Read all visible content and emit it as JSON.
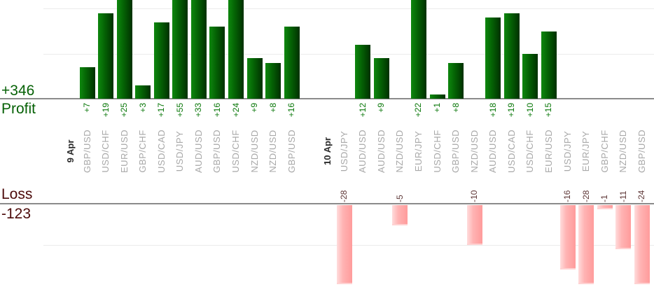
{
  "summary": {
    "profit_total": "+346",
    "profit_axis_label": "Profit",
    "loss_axis_label": "Loss",
    "loss_total": "-123"
  },
  "chart_data": {
    "type": "bar",
    "title": "",
    "description_visible_text_only": "Daily forex trades profit/loss bars per currency pair",
    "groups": [
      {
        "date": "9 Apr",
        "trades": [
          {
            "pair": "GBP/USD",
            "value": 7,
            "label": "+7"
          },
          {
            "pair": "USD/CHF",
            "value": 19,
            "label": "+19"
          },
          {
            "pair": "EUR/USD",
            "value": 25,
            "label": "+25"
          },
          {
            "pair": "GBP/CHF",
            "value": 3,
            "label": "+3"
          },
          {
            "pair": "USD/CAD",
            "value": 17,
            "label": "+17"
          },
          {
            "pair": "USD/JPY",
            "value": 55,
            "label": "+55"
          },
          {
            "pair": "AUD/USD",
            "value": 33,
            "label": "+33"
          },
          {
            "pair": "GBP/USD",
            "value": 16,
            "label": "+16"
          },
          {
            "pair": "USD/CHF",
            "value": 24,
            "label": "+24"
          },
          {
            "pair": "NZD/USD",
            "value": 9,
            "label": "+9"
          },
          {
            "pair": "NZD/USD",
            "value": 8,
            "label": "+8"
          },
          {
            "pair": "GBP/USD",
            "value": 16,
            "label": "+16"
          }
        ]
      },
      {
        "date": "10 Apr",
        "trades": [
          {
            "pair": "USD/JPY",
            "value": -28,
            "label": "-28"
          },
          {
            "pair": "AUD/USD",
            "value": 12,
            "label": "+12"
          },
          {
            "pair": "AUD/USD",
            "value": 9,
            "label": "+9"
          },
          {
            "pair": "NZD/USD",
            "value": -5,
            "label": "-5"
          },
          {
            "pair": "EUR/JPY",
            "value": 22,
            "label": "+22"
          },
          {
            "pair": "USD/CHF",
            "value": 1,
            "label": "+1"
          },
          {
            "pair": "GBP/USD",
            "value": 8,
            "label": "+8"
          },
          {
            "pair": "NZD/USD",
            "value": -10,
            "label": "-10"
          },
          {
            "pair": "AUD/USD",
            "value": 18,
            "label": "+18"
          },
          {
            "pair": "USD/CAD",
            "value": 19,
            "label": "+19"
          },
          {
            "pair": "USD/CHF",
            "value": 10,
            "label": "+10"
          },
          {
            "pair": "EUR/USD",
            "value": 15,
            "label": "+15"
          },
          {
            "pair": "USD/JPY",
            "value": -16,
            "label": "-16"
          },
          {
            "pair": "EUR/JPY",
            "value": -28,
            "label": "-28"
          },
          {
            "pair": "GBP/CHF",
            "value": -1,
            "label": "-1"
          },
          {
            "pair": "NZD/USD",
            "value": -11,
            "label": "-11"
          },
          {
            "pair": "GBP/USD",
            "value": -24,
            "label": "-24"
          }
        ]
      }
    ],
    "totals": {
      "profit": 346,
      "loss": -123
    },
    "axes": {
      "profit_gridline_values": [
        10,
        20
      ],
      "loss_gridline_values": [
        -10
      ],
      "profit_visible_range": [
        0,
        22
      ],
      "loss_visible_range": [
        0,
        -20
      ],
      "grid_on": true
    },
    "colors": {
      "profit_text_large": "#066106",
      "profit_value_text": "#077607",
      "loss_text_large": "#4c0a0a",
      "loss_value_text": "#5e3737",
      "pair_text": "#a8a8a8",
      "date_text": "#2b2b2b",
      "axis_line": "#8b8b8b",
      "gridline": "#ebebeb",
      "profit_bar_gradient": [
        "#0e870e",
        "#056505",
        "#003000"
      ],
      "loss_bar_gradient": [
        "#ffdcdc",
        "#ffb3b3",
        "#ff9b9b"
      ],
      "loss_bar_bottom_highlight": "#ffd2d2",
      "background": "#ffffff"
    }
  }
}
